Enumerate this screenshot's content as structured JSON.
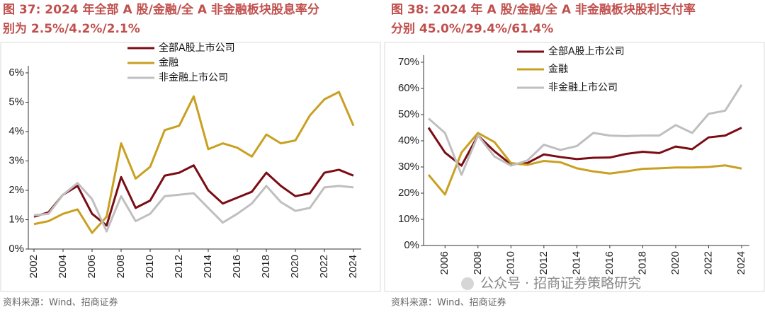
{
  "chart_data": [
    {
      "type": "line",
      "title": [
        "图 37: 2024 年全部 A 股/金融/全 A 非金融板块股息率分",
        "别为 2.5%/4.2%/2.1%"
      ],
      "x": [
        2002,
        2003,
        2004,
        2005,
        2006,
        2007,
        2008,
        2009,
        2010,
        2011,
        2012,
        2013,
        2014,
        2015,
        2016,
        2017,
        2018,
        2019,
        2020,
        2021,
        2022,
        2023,
        2024
      ],
      "xlim": [
        2002,
        2024
      ],
      "xticks": [
        2002,
        2004,
        2006,
        2008,
        2010,
        2012,
        2014,
        2016,
        2018,
        2020,
        2022,
        2024
      ],
      "ylim": [
        0,
        6
      ],
      "yticks": [
        {
          "value": 0,
          "label": "0%"
        },
        {
          "value": 1,
          "label": "1%"
        },
        {
          "value": 2,
          "label": "2%"
        },
        {
          "value": 3,
          "label": "3%"
        },
        {
          "value": 4,
          "label": "4%"
        },
        {
          "value": 5,
          "label": "5%"
        },
        {
          "value": 6,
          "label": "6%"
        }
      ],
      "series": [
        {
          "name": "全部A股上市公司",
          "color": "#7b0c14",
          "values": [
            1.1,
            1.25,
            1.85,
            2.15,
            1.2,
            0.8,
            2.45,
            1.4,
            1.65,
            2.5,
            2.6,
            2.85,
            2.0,
            1.55,
            1.75,
            1.95,
            2.6,
            2.15,
            1.8,
            1.9,
            2.6,
            2.7,
            2.5
          ]
        },
        {
          "name": "金融",
          "color": "#c9a020",
          "values": [
            0.85,
            0.95,
            1.2,
            1.35,
            0.55,
            1.1,
            3.6,
            2.4,
            2.8,
            4.05,
            4.2,
            5.2,
            3.4,
            3.6,
            3.45,
            3.15,
            3.9,
            3.6,
            3.7,
            4.55,
            5.1,
            5.35,
            4.2
          ]
        },
        {
          "name": "非金融上市公司",
          "color": "#bfbfbf",
          "values": [
            1.15,
            1.2,
            1.85,
            2.25,
            1.7,
            0.6,
            1.8,
            0.95,
            1.2,
            1.8,
            1.85,
            1.9,
            1.4,
            0.9,
            1.2,
            1.55,
            2.15,
            1.6,
            1.3,
            1.4,
            2.1,
            2.15,
            2.1
          ]
        }
      ],
      "source": "资料来源：Wind、招商证券"
    },
    {
      "type": "line",
      "title": [
        "图 38:  2024 年 A 股/金融/全 A 非金融板块股利支付率",
        "分别 45.0%/29.4%/61.4%"
      ],
      "x": [
        2005,
        2006,
        2007,
        2008,
        2009,
        2010,
        2011,
        2012,
        2013,
        2014,
        2015,
        2016,
        2017,
        2018,
        2019,
        2020,
        2021,
        2022,
        2023,
        2024
      ],
      "xlim": [
        2005,
        2024
      ],
      "xticks": [
        2006,
        2008,
        2010,
        2012,
        2014,
        2016,
        2018,
        2020,
        2022,
        2024
      ],
      "ylim": [
        0,
        70
      ],
      "yticks": [
        {
          "value": 0,
          "label": "0%"
        },
        {
          "value": 10,
          "label": "10%"
        },
        {
          "value": 20,
          "label": "20%"
        },
        {
          "value": 30,
          "label": "30%"
        },
        {
          "value": 40,
          "label": "40%"
        },
        {
          "value": 50,
          "label": "50%"
        },
        {
          "value": 60,
          "label": "60%"
        },
        {
          "value": 70,
          "label": "70%"
        }
      ],
      "series": [
        {
          "name": "全部A股上市公司",
          "color": "#7b0c14",
          "values": [
            45,
            35.5,
            30.5,
            42,
            36,
            31,
            31.5,
            34.8,
            33.8,
            33,
            33.5,
            33.6,
            35,
            35.8,
            35.3,
            37.8,
            36.8,
            41.3,
            42,
            45
          ]
        },
        {
          "name": "金融",
          "color": "#c9a020",
          "values": [
            27,
            19.5,
            35.5,
            43,
            39.5,
            31.5,
            30.8,
            32.3,
            31.8,
            29.5,
            28.3,
            27.5,
            28.3,
            29.3,
            29.5,
            29.8,
            29.8,
            30,
            30.6,
            29.4
          ]
        },
        {
          "name": "非金融上市公司",
          "color": "#bfbfbf",
          "values": [
            48.5,
            43,
            27,
            42,
            34,
            30.5,
            32.5,
            38.5,
            36.5,
            38,
            43,
            42,
            41.8,
            42,
            42,
            46,
            43,
            50.3,
            51.5,
            61.4
          ]
        }
      ],
      "source": "资料来源：Wind、招商证券"
    }
  ],
  "watermark": "公众号 · 招商证券策略研究"
}
